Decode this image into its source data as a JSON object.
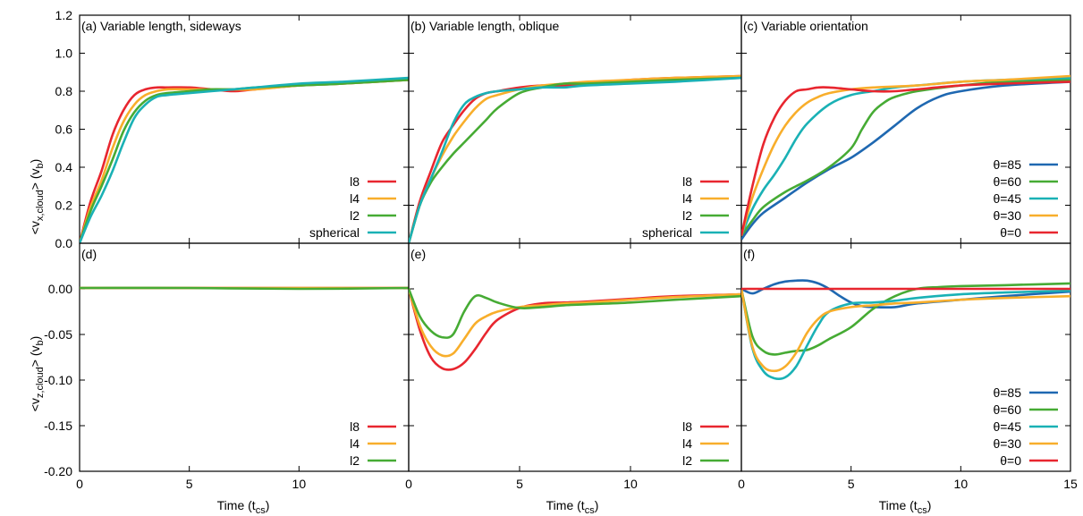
{
  "figure": {
    "xlabel": "Time",
    "xlabel_unit": "cs",
    "ylabel_top": "<v",
    "ylabel_top_sub": "x,cloud",
    "ylabel_top_tail": "> (v",
    "ylabel_top_unit": "b",
    "ylabel_bottom": "<v",
    "ylabel_bottom_sub": "z,cloud",
    "ylabel_bottom_tail": "> (v",
    "ylabel_bottom_unit": "b"
  },
  "colors": {
    "l8": "#e8262f",
    "l4": "#f8ae2b",
    "l2": "#46ab34",
    "spherical": "#1ab1b5",
    "theta85": "#1f68b1",
    "theta60": "#46ab34",
    "theta45": "#1ab1b5",
    "theta30": "#f8ae2b",
    "theta0": "#e8262f"
  },
  "chart_data": [
    {
      "type": "line",
      "title": "(a) Variable length, sideways",
      "xlim": [
        0,
        15
      ],
      "ylim": [
        0,
        1.2
      ],
      "xticks": [
        "0",
        "5",
        "10",
        ""
      ],
      "yticks": [
        "0.0",
        "0.2",
        "0.4",
        "0.6",
        "0.8",
        "1.0",
        "1.2"
      ],
      "series": [
        {
          "name": "l8",
          "x": [
            0,
            0.5,
            1,
            1.5,
            2,
            2.5,
            3,
            3.5,
            4,
            5,
            6,
            7,
            8,
            10,
            12,
            15
          ],
          "y": [
            0,
            0.22,
            0.38,
            0.57,
            0.7,
            0.78,
            0.81,
            0.82,
            0.82,
            0.82,
            0.81,
            0.8,
            0.81,
            0.83,
            0.84,
            0.86
          ]
        },
        {
          "name": "l4",
          "x": [
            0,
            0.5,
            1,
            1.5,
            2,
            2.5,
            3,
            3.5,
            4,
            5,
            6,
            7,
            8,
            10,
            12,
            15
          ],
          "y": [
            0,
            0.19,
            0.33,
            0.5,
            0.64,
            0.73,
            0.78,
            0.8,
            0.81,
            0.81,
            0.81,
            0.81,
            0.81,
            0.83,
            0.84,
            0.86
          ]
        },
        {
          "name": "l2",
          "x": [
            0,
            0.5,
            1,
            1.5,
            2,
            2.5,
            3,
            3.5,
            4,
            5,
            6,
            7,
            8,
            10,
            12,
            15
          ],
          "y": [
            0,
            0.17,
            0.3,
            0.44,
            0.59,
            0.69,
            0.75,
            0.78,
            0.79,
            0.8,
            0.81,
            0.81,
            0.82,
            0.83,
            0.84,
            0.86
          ]
        },
        {
          "name": "spherical",
          "x": [
            0,
            0.5,
            1,
            1.5,
            2,
            2.5,
            3,
            3.5,
            4,
            5,
            6,
            7,
            8,
            10,
            12,
            15
          ],
          "y": [
            0,
            0.14,
            0.25,
            0.38,
            0.53,
            0.66,
            0.73,
            0.77,
            0.78,
            0.79,
            0.8,
            0.81,
            0.82,
            0.84,
            0.85,
            0.87
          ]
        }
      ],
      "legend": [
        "l8",
        "l4",
        "l2",
        "spherical"
      ]
    },
    {
      "type": "line",
      "title": "(b) Variable length, oblique",
      "xlim": [
        0,
        15
      ],
      "ylim": [
        0,
        1.2
      ],
      "xticks": [
        "0",
        "5",
        "10",
        ""
      ],
      "series": [
        {
          "name": "l8",
          "x": [
            0,
            0.5,
            1,
            1.5,
            2,
            2.5,
            3,
            3.5,
            4,
            5,
            6,
            7,
            8,
            10,
            12,
            15
          ],
          "y": [
            0,
            0.22,
            0.38,
            0.53,
            0.62,
            0.7,
            0.76,
            0.79,
            0.8,
            0.82,
            0.83,
            0.83,
            0.84,
            0.86,
            0.87,
            0.88
          ]
        },
        {
          "name": "l4",
          "x": [
            0,
            0.5,
            1,
            1.5,
            2,
            2.5,
            3,
            3.5,
            4,
            5,
            6,
            7,
            8,
            10,
            12,
            15
          ],
          "y": [
            0,
            0.2,
            0.34,
            0.46,
            0.56,
            0.64,
            0.71,
            0.76,
            0.78,
            0.81,
            0.83,
            0.84,
            0.85,
            0.86,
            0.87,
            0.88
          ]
        },
        {
          "name": "l2",
          "x": [
            0,
            0.5,
            1,
            1.5,
            2,
            2.5,
            3,
            3.5,
            4,
            5,
            6,
            7,
            8,
            10,
            12,
            15
          ],
          "y": [
            0,
            0.2,
            0.32,
            0.4,
            0.47,
            0.53,
            0.59,
            0.65,
            0.71,
            0.79,
            0.82,
            0.84,
            0.84,
            0.85,
            0.86,
            0.87
          ]
        },
        {
          "name": "spherical",
          "x": [
            0,
            0.5,
            1,
            1.5,
            2,
            2.5,
            3,
            3.5,
            4,
            5,
            6,
            7,
            8,
            10,
            12,
            15
          ],
          "y": [
            0,
            0.2,
            0.34,
            0.48,
            0.63,
            0.73,
            0.77,
            0.79,
            0.8,
            0.81,
            0.82,
            0.82,
            0.83,
            0.84,
            0.85,
            0.87
          ]
        }
      ],
      "legend": [
        "l8",
        "l4",
        "l2",
        "spherical"
      ]
    },
    {
      "type": "line",
      "title": "(c) Variable orientation",
      "xlim": [
        0,
        15
      ],
      "ylim": [
        0,
        1.2
      ],
      "xticks": [
        "0",
        "5",
        "10",
        "15"
      ],
      "series": [
        {
          "name": "θ=85",
          "x": [
            0,
            0.5,
            1,
            2,
            3,
            4,
            5,
            6,
            7,
            8,
            9,
            10,
            12,
            15
          ],
          "y": [
            0.02,
            0.1,
            0.16,
            0.24,
            0.32,
            0.39,
            0.45,
            0.53,
            0.62,
            0.71,
            0.77,
            0.8,
            0.83,
            0.85
          ]
        },
        {
          "name": "θ=60",
          "x": [
            0,
            0.5,
            1,
            2,
            3,
            4,
            5,
            5.5,
            6,
            6.5,
            7,
            8,
            10,
            12,
            15
          ],
          "y": [
            0.04,
            0.12,
            0.19,
            0.27,
            0.33,
            0.4,
            0.5,
            0.6,
            0.69,
            0.74,
            0.77,
            0.8,
            0.83,
            0.85,
            0.86
          ]
        },
        {
          "name": "θ=45",
          "x": [
            0,
            0.5,
            1,
            1.5,
            2,
            2.5,
            3,
            4,
            5,
            6,
            7,
            8,
            10,
            12,
            15
          ],
          "y": [
            0.04,
            0.18,
            0.28,
            0.36,
            0.45,
            0.55,
            0.63,
            0.73,
            0.78,
            0.8,
            0.82,
            0.83,
            0.85,
            0.86,
            0.87
          ]
        },
        {
          "name": "θ=30",
          "x": [
            0,
            0.5,
            1,
            1.5,
            2,
            2.5,
            3,
            3.5,
            4,
            5,
            6,
            8,
            10,
            12,
            15
          ],
          "y": [
            0.04,
            0.24,
            0.39,
            0.52,
            0.62,
            0.69,
            0.74,
            0.77,
            0.79,
            0.81,
            0.82,
            0.83,
            0.85,
            0.86,
            0.88
          ]
        },
        {
          "name": "θ=0",
          "x": [
            0,
            0.5,
            1,
            1.5,
            2,
            2.5,
            3,
            3.5,
            4,
            5,
            6,
            7,
            8,
            10,
            12,
            15
          ],
          "y": [
            0.04,
            0.3,
            0.52,
            0.66,
            0.75,
            0.8,
            0.81,
            0.82,
            0.82,
            0.81,
            0.8,
            0.8,
            0.81,
            0.83,
            0.84,
            0.85
          ]
        }
      ],
      "legend": [
        "θ=85",
        "θ=60",
        "θ=45",
        "θ=30",
        "θ=0"
      ]
    },
    {
      "type": "line",
      "title": "(d)",
      "xlim": [
        0,
        15
      ],
      "ylim": [
        -0.2,
        0.05
      ],
      "xticks": [
        "0",
        "5",
        "10",
        ""
      ],
      "yticks": [
        "-0.20",
        "-0.15",
        "-0.10",
        "-0.05",
        "0.00"
      ],
      "series": [
        {
          "name": "l8",
          "x": [
            0,
            15
          ],
          "y": [
            0.001,
            0.001
          ]
        },
        {
          "name": "l4",
          "x": [
            0,
            15
          ],
          "y": [
            0.001,
            0.001
          ]
        },
        {
          "name": "l2",
          "x": [
            0,
            5,
            10,
            15
          ],
          "y": [
            0.001,
            0.001,
            0.0,
            0.001
          ]
        }
      ],
      "legend": [
        "l8",
        "l4",
        "l2"
      ]
    },
    {
      "type": "line",
      "title": "(e)",
      "xlim": [
        0,
        15
      ],
      "ylim": [
        -0.2,
        0.05
      ],
      "xticks": [
        "0",
        "5",
        "10",
        ""
      ],
      "series": [
        {
          "name": "l8",
          "x": [
            0,
            0.5,
            1,
            1.5,
            2,
            2.5,
            3,
            3.5,
            4,
            5,
            6,
            7,
            8,
            10,
            12,
            15
          ],
          "y": [
            0,
            -0.045,
            -0.075,
            -0.087,
            -0.088,
            -0.081,
            -0.066,
            -0.048,
            -0.034,
            -0.021,
            -0.016,
            -0.015,
            -0.014,
            -0.011,
            -0.008,
            -0.006
          ]
        },
        {
          "name": "l4",
          "x": [
            0,
            0.5,
            1,
            1.5,
            2,
            2.5,
            3,
            3.5,
            4,
            5,
            6,
            7,
            8,
            10,
            12,
            15
          ],
          "y": [
            0,
            -0.04,
            -0.063,
            -0.073,
            -0.071,
            -0.055,
            -0.038,
            -0.03,
            -0.025,
            -0.02,
            -0.018,
            -0.016,
            -0.015,
            -0.012,
            -0.009,
            -0.006
          ]
        },
        {
          "name": "l2",
          "x": [
            0,
            0.5,
            1,
            1.5,
            2,
            2.5,
            3,
            3.5,
            4,
            5,
            6,
            7,
            8,
            10,
            12,
            15
          ],
          "y": [
            0,
            -0.03,
            -0.046,
            -0.053,
            -0.05,
            -0.025,
            -0.008,
            -0.01,
            -0.015,
            -0.021,
            -0.02,
            -0.018,
            -0.017,
            -0.015,
            -0.012,
            -0.008
          ]
        }
      ],
      "legend": [
        "l8",
        "l4",
        "l2"
      ]
    },
    {
      "type": "line",
      "title": "(f)",
      "xlim": [
        0,
        15
      ],
      "ylim": [
        -0.2,
        0.05
      ],
      "xticks": [
        "0",
        "5",
        "10",
        "15"
      ],
      "series": [
        {
          "name": "θ=85",
          "x": [
            0,
            0.5,
            1,
            1.5,
            2,
            2.5,
            3,
            3.5,
            4,
            4.5,
            5,
            5.5,
            6,
            7,
            8,
            10,
            12,
            15
          ],
          "y": [
            0,
            -0.005,
            0.0,
            0.005,
            0.008,
            0.009,
            0.009,
            0.006,
            0.0,
            -0.008,
            -0.015,
            -0.019,
            -0.02,
            -0.02,
            -0.016,
            -0.012,
            -0.008,
            -0.003
          ]
        },
        {
          "name": "θ=60",
          "x": [
            0,
            0.5,
            1,
            1.5,
            2,
            2.5,
            3,
            3.5,
            4,
            5,
            6,
            7,
            8,
            9,
            10,
            12,
            15
          ],
          "y": [
            0,
            -0.052,
            -0.068,
            -0.072,
            -0.07,
            -0.068,
            -0.067,
            -0.062,
            -0.055,
            -0.042,
            -0.022,
            -0.008,
            0.0,
            0.002,
            0.003,
            0.004,
            0.006
          ]
        },
        {
          "name": "θ=45",
          "x": [
            0,
            0.5,
            1,
            1.5,
            2,
            2.5,
            3,
            3.5,
            4,
            5,
            6,
            7,
            8,
            10,
            12,
            15
          ],
          "y": [
            0,
            -0.065,
            -0.09,
            -0.098,
            -0.097,
            -0.085,
            -0.062,
            -0.04,
            -0.025,
            -0.016,
            -0.015,
            -0.013,
            -0.01,
            -0.006,
            -0.004,
            -0.002
          ]
        },
        {
          "name": "θ=30",
          "x": [
            0,
            0.5,
            1,
            1.5,
            2,
            2.5,
            3,
            3.5,
            4,
            5,
            6,
            7,
            8,
            10,
            12,
            15
          ],
          "y": [
            0,
            -0.063,
            -0.085,
            -0.09,
            -0.085,
            -0.07,
            -0.048,
            -0.033,
            -0.025,
            -0.02,
            -0.018,
            -0.016,
            -0.015,
            -0.012,
            -0.01,
            -0.008
          ]
        },
        {
          "name": "θ=0",
          "x": [
            0,
            15
          ],
          "y": [
            0,
            0
          ]
        }
      ],
      "legend": [
        "θ=85",
        "θ=60",
        "θ=45",
        "θ=30",
        "θ=0"
      ]
    }
  ]
}
